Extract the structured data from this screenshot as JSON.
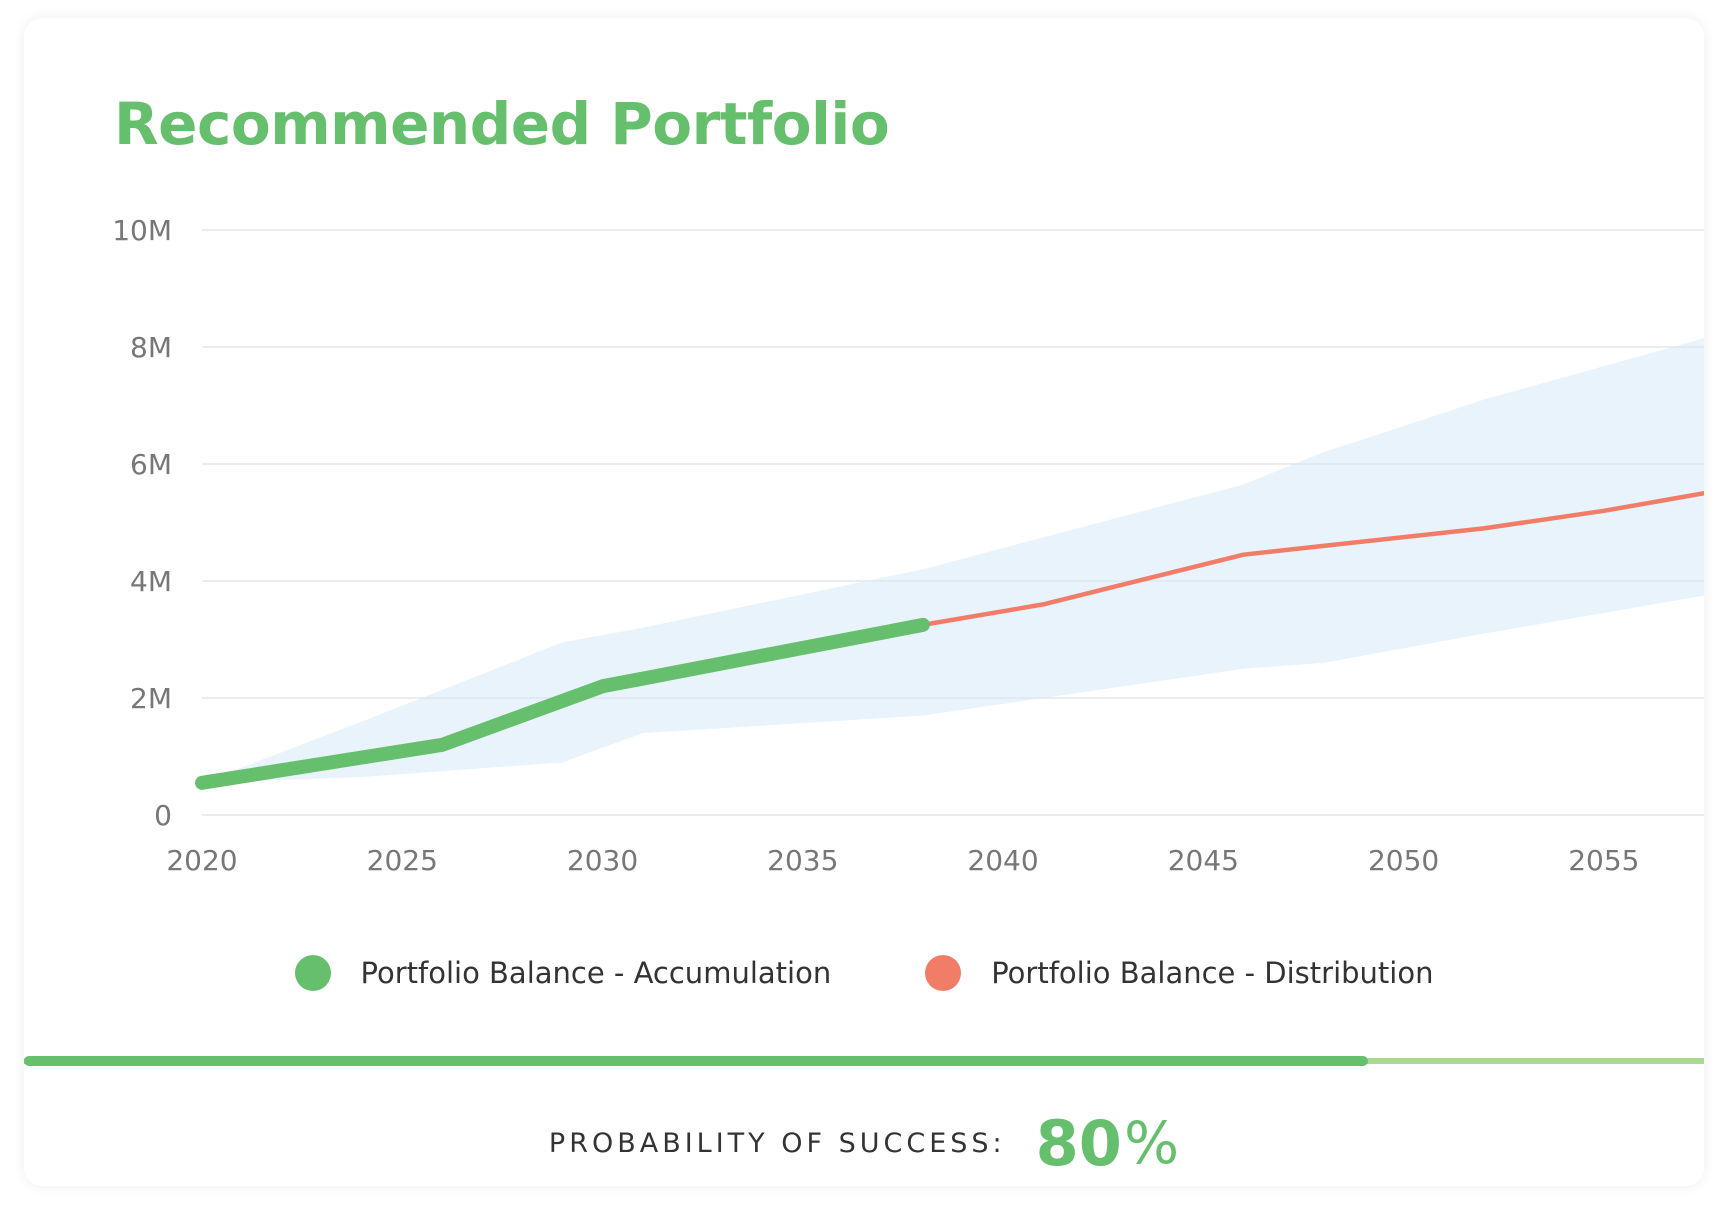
{
  "card": {
    "title": "Recommended Portfolio"
  },
  "colors": {
    "title": "#66bf6d",
    "accumulation": "#66bf6d",
    "distribution": "#f17d68",
    "band": "#d6eaf8",
    "grid": "#e6e6e6",
    "progress_fill": "#66bf6d",
    "progress_track": "#a9d98e",
    "value": "#66bf6d"
  },
  "legend": {
    "items": [
      {
        "label": "Portfolio Balance - Accumulation",
        "color": "#66bf6d"
      },
      {
        "label": "Portfolio Balance - Distribution",
        "color": "#f17d68"
      }
    ]
  },
  "success": {
    "label": "PROBABILITY OF SUCCESS:",
    "value": "80",
    "unit": "%",
    "progress": 0.8
  },
  "chart_data": {
    "type": "line",
    "title": "",
    "xlabel": "",
    "ylabel": "",
    "xlim": [
      2020,
      2057.5
    ],
    "ylim": [
      0,
      10000000
    ],
    "x_ticks": [
      2020,
      2025,
      2030,
      2035,
      2040,
      2045,
      2050,
      2055
    ],
    "x_tick_labels": [
      "2020",
      "2025",
      "2030",
      "2035",
      "2040",
      "2045",
      "2050",
      "2055"
    ],
    "y_ticks": [
      0,
      2000000,
      4000000,
      6000000,
      8000000,
      10000000
    ],
    "y_tick_labels": [
      "0",
      "2M",
      "4M",
      "6M",
      "8M",
      "10M"
    ],
    "grid": true,
    "legend_position": "bottom",
    "series": [
      {
        "name": "Portfolio Balance - Accumulation",
        "x": [
          2020,
          2026,
          2030,
          2038
        ],
        "y": [
          550000,
          1200000,
          2200000,
          3250000
        ]
      },
      {
        "name": "Portfolio Balance - Distribution",
        "x": [
          2038,
          2041,
          2046,
          2048,
          2052,
          2055,
          2057.5
        ],
        "y": [
          3250000,
          3600000,
          4450000,
          4600000,
          4900000,
          5200000,
          5500000
        ]
      }
    ],
    "range_band": {
      "x": [
        2020,
        2024,
        2029,
        2031,
        2038,
        2046,
        2048,
        2052,
        2057.5
      ],
      "upper": [
        550000,
        1600000,
        2950000,
        3200000,
        4200000,
        5650000,
        6200000,
        7100000,
        8150000
      ],
      "lower": [
        550000,
        650000,
        900000,
        1400000,
        1700000,
        2500000,
        2600000,
        3100000,
        3750000
      ]
    }
  }
}
